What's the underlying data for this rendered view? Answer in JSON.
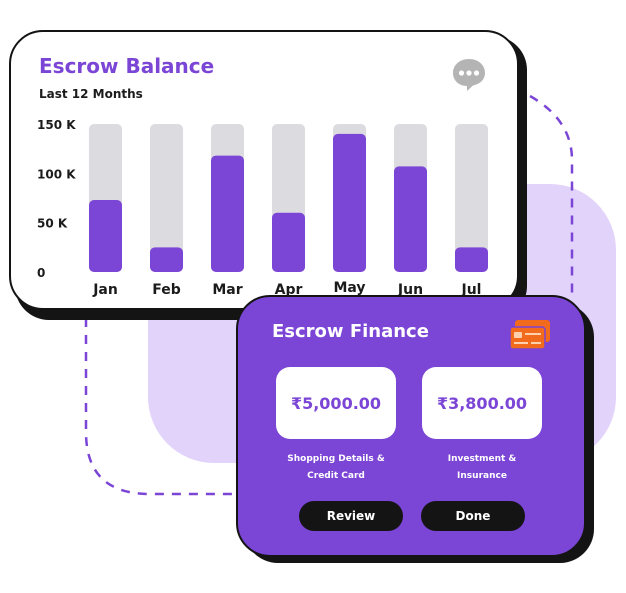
{
  "balance_card": {
    "title": "Escrow Balance",
    "subtitle": "Last 12 Months",
    "chat_icon": "chat-bubble-icon"
  },
  "chart_data": {
    "type": "bar",
    "title": "Escrow Balance",
    "subtitle": "Last 12 Months",
    "categories": [
      "Jan",
      "Feb",
      "Mar",
      "Apr",
      "May",
      "Jun",
      "Jul"
    ],
    "values": [
      73,
      25,
      118,
      60,
      140,
      107,
      25
    ],
    "ylim": [
      0,
      150
    ],
    "yticks": [
      0,
      50,
      100,
      150
    ],
    "ytick_labels": [
      "0",
      "50 K",
      "100 K",
      "150 K"
    ],
    "bar_color": "#7b45d6",
    "track_color": "#dcdce0",
    "grid": false
  },
  "finance_card": {
    "title": "Escrow Finance",
    "card_icon": "credit-card-icon",
    "amounts": [
      {
        "value": "₹5,000.00",
        "label_line1": "Shopping Details &",
        "label_line2": "Credit Card"
      },
      {
        "value": "₹3,800.00",
        "label_line1": "Investment &",
        "label_line2": "Insurance"
      }
    ],
    "review_label": "Review",
    "done_label": "Done"
  },
  "colors": {
    "accent": "#7b45d6",
    "lilac": "#e2d3fb",
    "dark": "#141414",
    "icon_orange": "#f26b1d"
  }
}
